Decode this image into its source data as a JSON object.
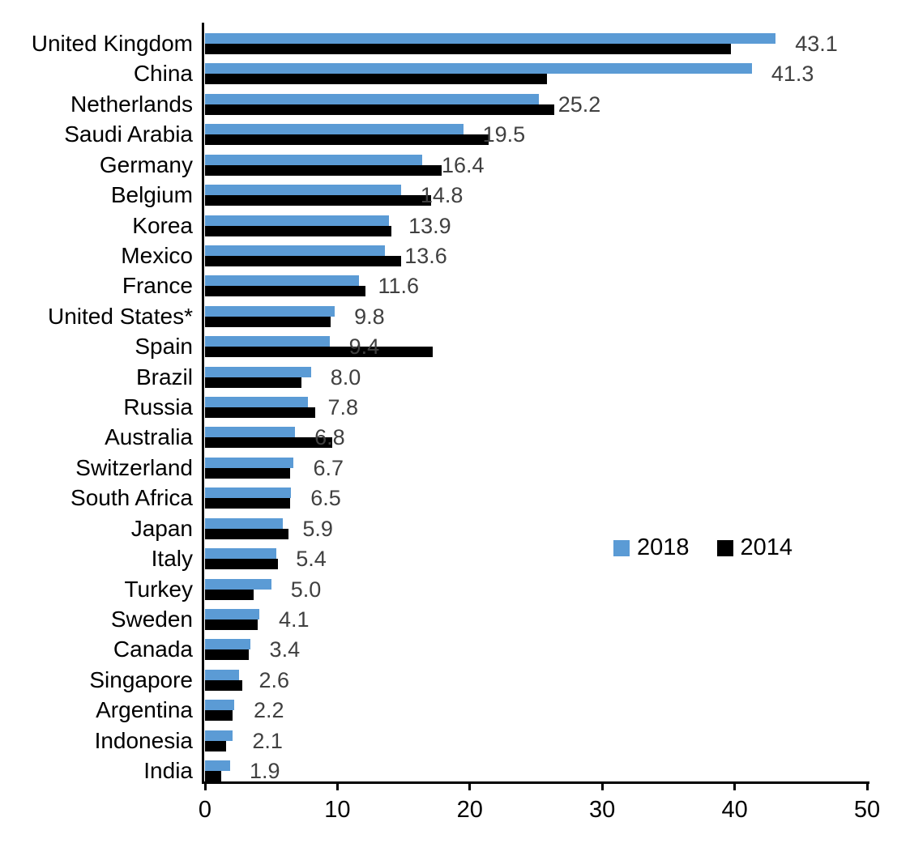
{
  "chart_data": {
    "type": "bar",
    "orientation": "horizontal",
    "title": "",
    "categories": [
      "United Kingdom",
      "China",
      "Netherlands",
      "Saudi Arabia",
      "Germany",
      "Belgium",
      "Korea",
      "Mexico",
      "France",
      "United States*",
      "Spain",
      "Brazil",
      "Russia",
      "Australia",
      "Switzerland",
      "South Africa",
      "Japan",
      "Italy",
      "Turkey",
      "Sweden",
      "Canada",
      "Singapore",
      "Argentina",
      "Indonesia",
      "India"
    ],
    "series": [
      {
        "name": "2018",
        "color": "#5B9BD5",
        "values": [
          43.1,
          41.3,
          25.2,
          19.5,
          16.4,
          14.8,
          13.9,
          13.6,
          11.6,
          9.8,
          9.4,
          8.0,
          7.8,
          6.8,
          6.7,
          6.5,
          5.9,
          5.4,
          5.0,
          4.1,
          3.4,
          2.6,
          2.2,
          2.1,
          1.9
        ]
      },
      {
        "name": "2014",
        "color": "#000000",
        "values": [
          39.7,
          25.8,
          26.4,
          21.4,
          17.9,
          17.1,
          14.1,
          14.8,
          12.1,
          9.5,
          17.2,
          7.3,
          8.3,
          9.6,
          6.4,
          6.4,
          6.3,
          5.5,
          3.7,
          4.0,
          3.3,
          2.8,
          2.1,
          1.6,
          1.2
        ]
      }
    ],
    "data_labels": [
      "43.1",
      "41.3",
      "25.2",
      "19.5",
      "16.4",
      "14.8",
      "13.9",
      "13.6",
      "11.6",
      "9.8",
      "9.4",
      "8.0",
      "7.8",
      "6.8",
      "6.7",
      "6.5",
      "5.9",
      "5.4",
      "5.0",
      "4.1",
      "3.4",
      "2.6",
      "2.2",
      "2.1",
      "1.9"
    ],
    "data_label_color": "#404040",
    "xlabel": "",
    "ylabel": "",
    "xlim": [
      0,
      50
    ],
    "x_ticks": [
      "0",
      "10",
      "20",
      "30",
      "40",
      "50"
    ],
    "grid": false,
    "legend_position": "middle-right"
  }
}
